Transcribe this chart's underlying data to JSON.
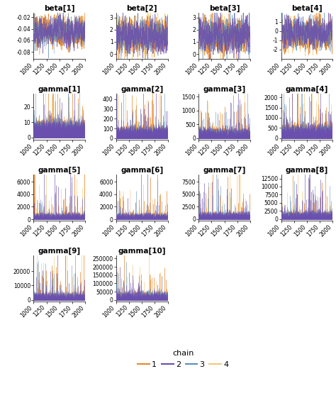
{
  "subplots": [
    {
      "title": "beta[1]",
      "ylim": [
        -0.092,
        -0.012
      ],
      "yticks": [
        -0.08,
        -0.06,
        -0.04,
        -0.02
      ],
      "ymean": -0.045,
      "yspread": 0.012,
      "is_beta": true
    },
    {
      "title": "beta[2]",
      "ylim": [
        -0.4,
        3.4
      ],
      "yticks": [
        0,
        1,
        2,
        3
      ],
      "ymean": 1.5,
      "yspread": 0.7,
      "is_beta": true
    },
    {
      "title": "beta[3]",
      "ylim": [
        -0.4,
        3.4
      ],
      "yticks": [
        0,
        1,
        2,
        3
      ],
      "ymean": 1.5,
      "yspread": 0.7,
      "is_beta": true
    },
    {
      "title": "beta[4]",
      "ylim": [
        -3.0,
        2.0
      ],
      "yticks": [
        -2,
        -1,
        0,
        1
      ],
      "ymean": -0.3,
      "yspread": 0.8,
      "is_beta": true
    },
    {
      "title": "gamma[1]",
      "ylim": [
        -1.5,
        29
      ],
      "yticks": [
        0,
        10,
        20
      ],
      "ybase": 7,
      "ybase_spread": 2.5,
      "spike_height": 24,
      "spike_prob": 0.06
    },
    {
      "title": "gamma[2]",
      "ylim": [
        -15,
        460
      ],
      "yticks": [
        0,
        100,
        200,
        300,
        400
      ],
      "ybase": 70,
      "ybase_spread": 30,
      "spike_height": 420,
      "spike_prob": 0.05
    },
    {
      "title": "gamma[3]",
      "ylim": [
        -50,
        1620
      ],
      "yticks": [
        0,
        500,
        1000,
        1500
      ],
      "ybase": 200,
      "ybase_spread": 100,
      "spike_height": 1400,
      "spike_prob": 0.05
    },
    {
      "title": "gamma[4]",
      "ylim": [
        -80,
        2200
      ],
      "yticks": [
        0,
        500,
        1000,
        1500,
        2000
      ],
      "ybase": 350,
      "ybase_spread": 200,
      "spike_height": 2000,
      "spike_prob": 0.06
    },
    {
      "title": "gamma[5]",
      "ylim": [
        -200,
        7200
      ],
      "yticks": [
        0,
        2000,
        4000,
        6000
      ],
      "ybase": 500,
      "ybase_spread": 300,
      "spike_height": 6500,
      "spike_prob": 0.04
    },
    {
      "title": "gamma[6]",
      "ylim": [
        -200,
        7200
      ],
      "yticks": [
        0,
        2000,
        4000,
        6000
      ],
      "ybase": 500,
      "ybase_spread": 300,
      "spike_height": 6000,
      "spike_prob": 0.04
    },
    {
      "title": "gamma[7]",
      "ylim": [
        -300,
        9000
      ],
      "yticks": [
        0,
        2500,
        5000,
        7500
      ],
      "ybase": 700,
      "ybase_spread": 400,
      "spike_height": 8200,
      "spike_prob": 0.04
    },
    {
      "title": "gamma[8]",
      "ylim": [
        -500,
        13800
      ],
      "yticks": [
        0,
        2500,
        5000,
        7500,
        10000,
        12500
      ],
      "ybase": 1200,
      "ybase_spread": 700,
      "spike_height": 12000,
      "spike_prob": 0.05
    },
    {
      "title": "gamma[9]",
      "ylim": [
        -1000,
        31000
      ],
      "yticks": [
        0,
        10000,
        20000
      ],
      "ybase": 2500,
      "ybase_spread": 1500,
      "spike_height": 28000,
      "spike_prob": 0.05
    },
    {
      "title": "gamma[10]",
      "ylim": [
        -8000,
        270000
      ],
      "yticks": [
        0,
        50000,
        100000,
        150000,
        200000,
        250000
      ],
      "ybase": 25000,
      "ybase_spread": 15000,
      "spike_height": 240000,
      "spike_prob": 0.05
    }
  ],
  "chain_colors": [
    "#E8872A",
    "#6B4FAF",
    "#5B8DB8",
    "#F5C97A"
  ],
  "chain_alphas": [
    1.0,
    0.85,
    0.75,
    0.9
  ],
  "chain_zorders": [
    2,
    4,
    3,
    1
  ],
  "xmin": 1000,
  "xmax": 2000,
  "xticks": [
    1000,
    1250,
    1500,
    1750,
    2000
  ],
  "n_samples": 500,
  "legend_labels": [
    "1",
    "2",
    "3",
    "4"
  ],
  "legend_colors": [
    "#E8872A",
    "#6B4FAF",
    "#5B8DB8",
    "#F5C97A"
  ],
  "background_color": "#FFFFFF",
  "title_fontsize": 7.5,
  "tick_fontsize": 5.5,
  "legend_fontsize": 8
}
